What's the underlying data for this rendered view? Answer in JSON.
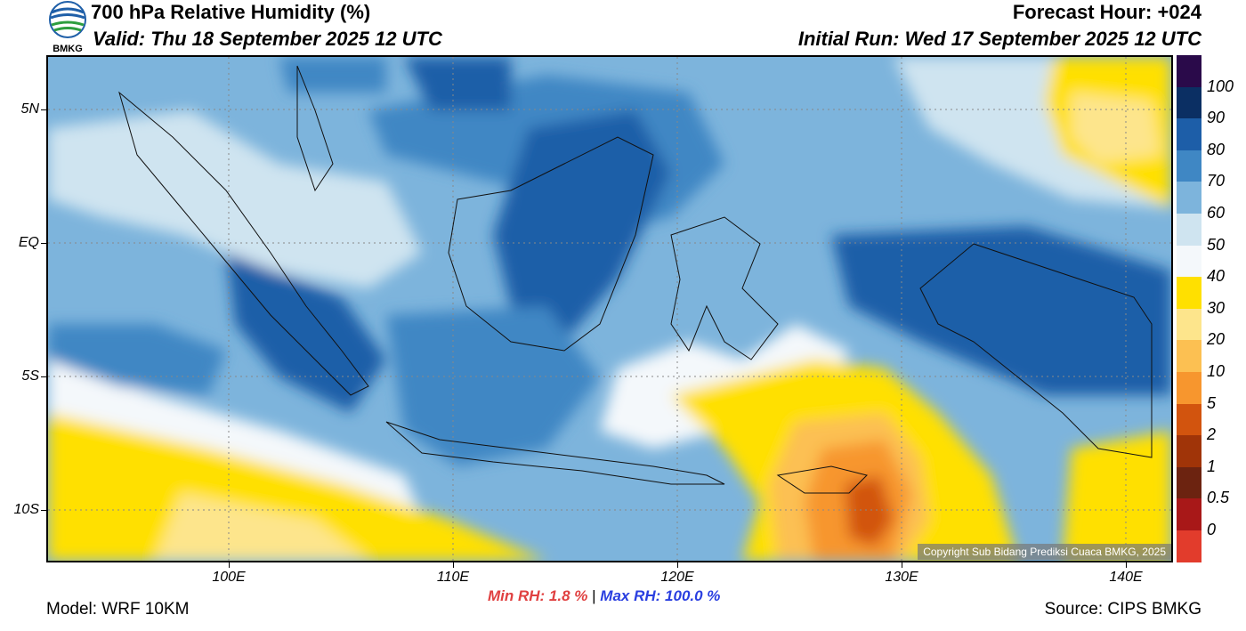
{
  "header": {
    "title": "700 hPa Relative Humidity (%)",
    "valid": "Valid: Thu 18 September 2025 12 UTC",
    "forecast_hour": "Forecast Hour: +024",
    "initial_run": "Initial Run: Wed 17 September 2025 12 UTC",
    "logo_text": "BMKG"
  },
  "map": {
    "lat_labels": [
      "5N",
      "EQ",
      "5S",
      "10S"
    ],
    "lon_labels": [
      "100E",
      "110E",
      "120E",
      "130E",
      "140E"
    ],
    "copyright": "Copyright Sub Bidang Prediksi Cuaca BMKG, 2025"
  },
  "colorbar": {
    "labels": [
      "100",
      "90",
      "80",
      "70",
      "60",
      "50",
      "40",
      "30",
      "20",
      "10",
      "5",
      "2",
      "1",
      "0.5",
      "0"
    ],
    "colors": [
      "#2a0a4a",
      "#0b2f63",
      "#1d5ea8",
      "#3f87c4",
      "#7db4dc",
      "#cfe4f0",
      "#f4f8fb",
      "#ffe000",
      "#fde58c",
      "#fcc052",
      "#f7962e",
      "#d2540e",
      "#a03408",
      "#6c2310",
      "#a81818",
      "#e23c2c"
    ]
  },
  "footer": {
    "model": "Model: WRF 10KM",
    "min_rh": "Min RH:   1.8 %",
    "separator": "|",
    "max_rh": "Max RH: 100.0 %",
    "source": "Source: CIPS BMKG"
  }
}
